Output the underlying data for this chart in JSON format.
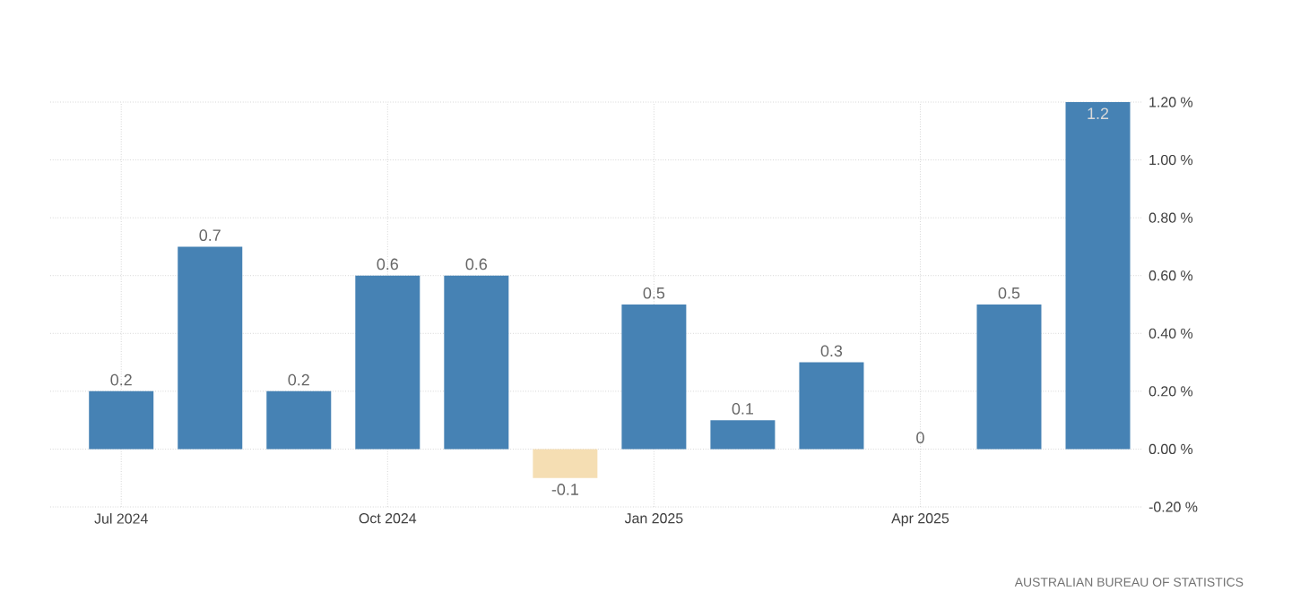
{
  "chart_data": {
    "type": "bar",
    "categories": [
      "Jul 2024",
      null,
      null,
      "Oct 2024",
      null,
      null,
      "Jan 2025",
      null,
      null,
      "Apr 2025",
      null,
      null
    ],
    "values": [
      0.2,
      0.7,
      0.2,
      0.6,
      0.6,
      -0.1,
      0.5,
      0.1,
      0.3,
      0,
      0.5,
      1.2
    ],
    "colors": [
      "#4682b4",
      "#4682b4",
      "#4682b4",
      "#4682b4",
      "#4682b4",
      "#f5deb3",
      "#4682b4",
      "#4682b4",
      "#4682b4",
      "#4682b4",
      "#4682b4",
      "#4682b4"
    ],
    "value_labels": [
      "0.2",
      "0.7",
      "0.2",
      "0.6",
      "0.6",
      "-0.1",
      "0.5",
      "0.1",
      "0.3",
      "0",
      "0.5",
      "1.2"
    ],
    "ylim": [
      -0.2,
      1.2
    ],
    "yticks": [
      {
        "value": -0.2,
        "label": "-0.20 %"
      },
      {
        "value": 0,
        "label": "0.00 %"
      },
      {
        "value": 0.2,
        "label": "0.20 %"
      },
      {
        "value": 0.4,
        "label": "0.40 %"
      },
      {
        "value": 0.6,
        "label": "0.60 %"
      },
      {
        "value": 0.8,
        "label": "0.80 %"
      },
      {
        "value": 1.0,
        "label": "1.00 %"
      },
      {
        "value": 1.2,
        "label": "1.20 %"
      }
    ],
    "grid": true,
    "annotations": [
      "AUSTRALIAN BUREAU OF STATISTICS"
    ]
  }
}
